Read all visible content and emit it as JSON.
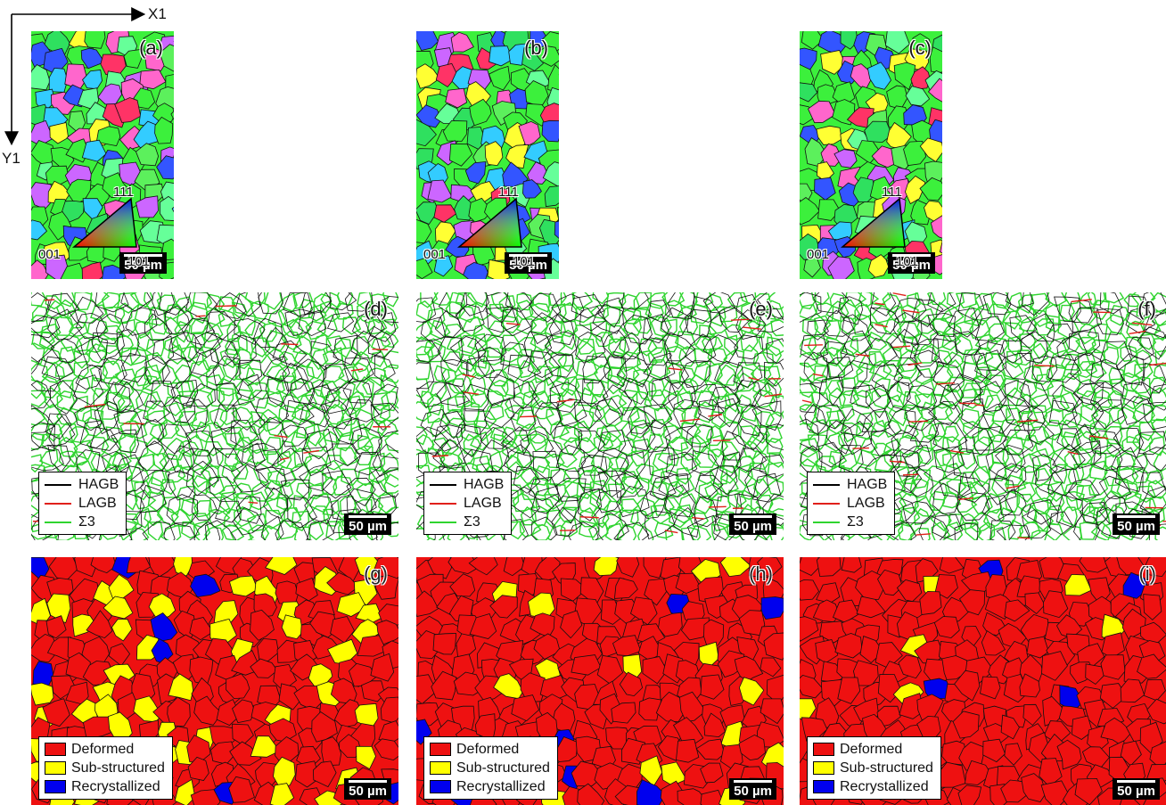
{
  "axes": {
    "x_label": "X1",
    "y_label": "Y1"
  },
  "scale_bar": "50 µm",
  "ipf_triangle": {
    "top": "111",
    "left": "001",
    "right": "101"
  },
  "rows": [
    {
      "type": "ipf",
      "panels": [
        {
          "letter": "(a)",
          "color": "#3cf03c"
        },
        {
          "letter": "(b)",
          "color": "#3cf03c"
        },
        {
          "letter": "(c)",
          "color": "#3cf03c"
        }
      ]
    },
    {
      "type": "boundary",
      "panels": [
        {
          "letter": "(d)"
        },
        {
          "letter": "(e)"
        },
        {
          "letter": "(f)"
        }
      ],
      "legend": [
        {
          "label": "HAGB",
          "color": "#000000"
        },
        {
          "label": "LAGB",
          "color": "#e0201a"
        },
        {
          "label": "Σ3",
          "color": "#2fd42f"
        }
      ]
    },
    {
      "type": "phase",
      "panels": [
        {
          "letter": "(g)",
          "yellow_fraction": 0.25
        },
        {
          "letter": "(h)",
          "yellow_fraction": 0.08
        },
        {
          "letter": "(i)",
          "yellow_fraction": 0.03
        }
      ],
      "legend": [
        {
          "label": "Deformed",
          "color": "#ee1111"
        },
        {
          "label": "Sub-structured",
          "color": "#ffff00"
        },
        {
          "label": "Recrystallized",
          "color": "#0000ee"
        }
      ]
    }
  ]
}
